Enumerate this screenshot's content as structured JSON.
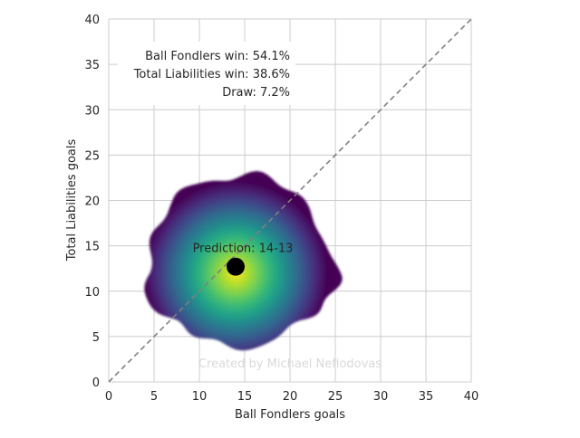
{
  "chart_data": {
    "type": "heatmap",
    "xlabel": "Ball Fondlers goals",
    "ylabel": "Total Liabilities goals",
    "xlim": [
      0,
      40
    ],
    "ylim": [
      0,
      40
    ],
    "xticks": [
      0,
      5,
      10,
      15,
      20,
      25,
      30,
      35,
      40
    ],
    "yticks": [
      0,
      5,
      10,
      15,
      20,
      25,
      30,
      35,
      40
    ],
    "grid": true,
    "colormap": "viridis",
    "density_center": {
      "x": 14,
      "y": 12
    },
    "density_extent": {
      "x_min": 4,
      "x_max": 25,
      "y_min": 4,
      "y_max": 23
    },
    "prediction_point": {
      "x": 14,
      "y": 12.7
    },
    "prediction_label": "Prediction: 14-13",
    "diagonal_line": {
      "from": [
        0,
        0
      ],
      "to": [
        40,
        40
      ],
      "style": "dashed"
    },
    "win_probabilities": [
      "Ball Fondlers win: 54.1%",
      "Total Liabilities win: 38.6%",
      "Draw: 7.2%"
    ],
    "watermark": "Created by Michael Nefiodovas"
  },
  "colors": {
    "grid": "#cccccc",
    "axis_text": "#262626",
    "diagonal": "#808080",
    "point": "#000000",
    "watermark": "#d9d9d9",
    "viridis": [
      "#440154",
      "#482878",
      "#3e4989",
      "#31688e",
      "#26828e",
      "#1f9e89",
      "#35b779",
      "#6ece58",
      "#b5de2b",
      "#fde725"
    ]
  }
}
